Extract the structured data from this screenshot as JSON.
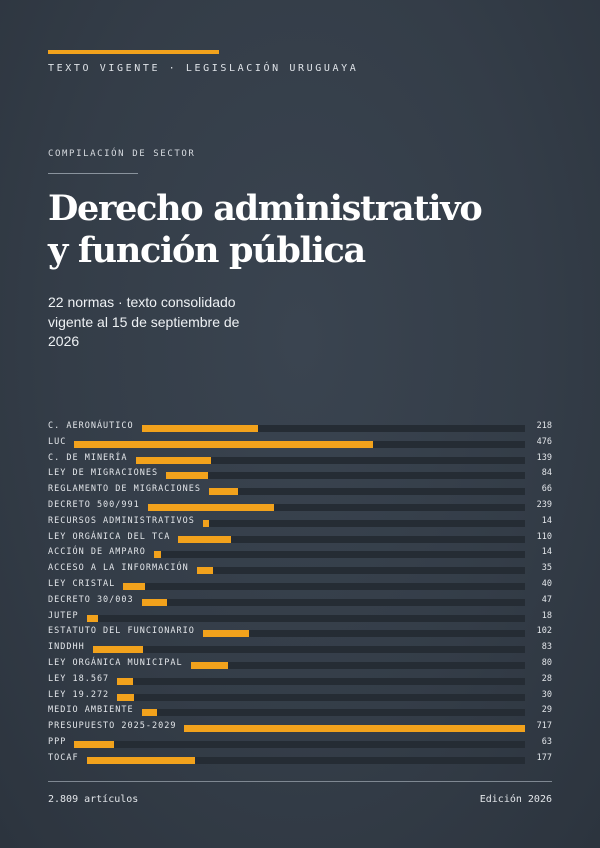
{
  "header": {
    "eyebrow": "TEXTO VIGENTE · LEGISLACIÓN URUGUAYA",
    "section": "COMPILACIÓN DE SECTOR",
    "title_line1": "Derecho administrativo",
    "title_line2": "y función pública",
    "subtitle": "22 normas · texto consolidado vigente al 15 de septiembre de 2026"
  },
  "colors": {
    "accent": "#f2a21c",
    "background": "#343d48",
    "track": "#252c34"
  },
  "chart_data": {
    "type": "bar",
    "categories": [
      "C. AERONÁUTICO",
      "LUC",
      "C. DE MINERÍA",
      "LEY DE MIGRACIONES",
      "REGLAMENTO DE MIGRACIONES",
      "DECRETO 500/991",
      "RECURSOS ADMINISTRATIVOS",
      "LEY ORGÁNICA DEL TCA",
      "ACCIÓN DE AMPARO",
      "ACCESO A LA INFORMACIÓN",
      "LEY CRISTAL",
      "DECRETO 30/003",
      "JUTEP",
      "ESTATUTO DEL FUNCIONARIO",
      "INDDHH",
      "LEY ORGÁNICA MUNICIPAL",
      "LEY 18.567",
      "LEY 19.272",
      "MEDIO AMBIENTE",
      "PRESUPUESTO 2025-2029",
      "PPP",
      "TOCAF"
    ],
    "values": [
      218,
      476,
      139,
      84,
      66,
      239,
      14,
      110,
      14,
      35,
      40,
      47,
      18,
      102,
      83,
      80,
      28,
      30,
      29,
      717,
      63,
      177
    ],
    "value_labels": [
      "218",
      "476",
      "139",
      "84",
      "66",
      "239",
      "14",
      "110",
      "14",
      "35",
      "40",
      "47",
      "18",
      "102",
      "83",
      "80",
      "28",
      "30",
      "29",
      "717",
      "63",
      "177"
    ],
    "max": 717
  },
  "footer": {
    "left": "2.809 artículos",
    "right": "Edición 2026"
  }
}
